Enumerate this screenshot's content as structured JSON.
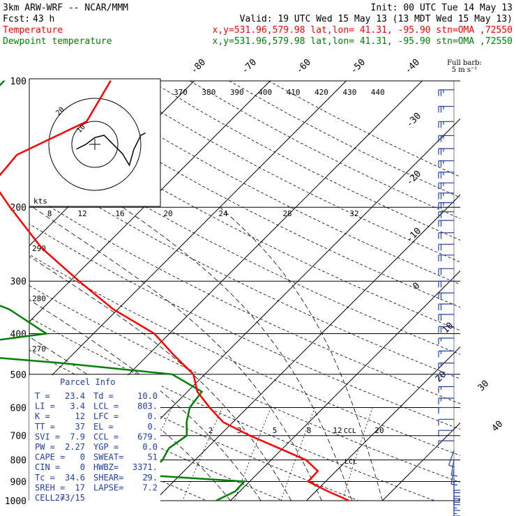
{
  "header": {
    "model": "3km ARW-WRF -- NCAR/MMM",
    "init": "Init: 00 UTC Tue 14 May 13",
    "fcst_label": "Fcst:",
    "fcst_value": "43 h",
    "valid": "Valid: 19 UTC Wed 15 May 13 (13 MDT Wed 15 May 13)"
  },
  "legend": {
    "temperature": {
      "label": "Temperature",
      "info": "x,y=531.96,579.98   lat,lon= 41.31, -95.90   stn=OMA ,72550",
      "color": "#ff0000"
    },
    "dewpoint": {
      "label": "Dewpoint temperature",
      "info": "x,y=531.96,579.98   lat,lon= 41.31, -95.90   stn=OMA ,72550",
      "color": "#008000"
    }
  },
  "barb_note": {
    "line1": "Full barb:",
    "line2": "5 m s⁻¹"
  },
  "hodograph": {
    "units": "kts",
    "speed_labels": [
      "8",
      "12",
      "16",
      "20",
      "24",
      "28",
      "32"
    ],
    "ring_labels": [
      "20",
      "10"
    ]
  },
  "parcel_info": {
    "title": "Parcel Info",
    "rows": [
      {
        "k1": "T   =",
        "v1": "23.4",
        "k2": "Td =",
        "v2": "10.0"
      },
      {
        "k1": "LI  =",
        "v1": "3.4",
        "k2": "LCL =",
        "v2": "803."
      },
      {
        "k1": "K   =",
        "v1": "12",
        "k2": "LFC =",
        "v2": "0."
      },
      {
        "k1": "TT  =",
        "v1": "37",
        "k2": "EL  =",
        "v2": "0."
      },
      {
        "k1": "SVI =",
        "v1": "7.9",
        "k2": "CCL =",
        "v2": "679."
      },
      {
        "k1": "PW  =",
        "v1": "2.27",
        "k2": "YGP =",
        "v2": "0.0"
      },
      {
        "k1": "CAPE =",
        "v1": "0",
        "k2": "SWEAT=",
        "v2": "51"
      },
      {
        "k1": "CIN  =",
        "v1": "0",
        "k2": "HWBZ=",
        "v2": "3371."
      },
      {
        "k1": "Tc   =",
        "v1": "34.6",
        "k2": "SHEAR=",
        "v2": "29."
      },
      {
        "k1": "SREH =",
        "v1": "17",
        "k2": "LAPSE=",
        "v2": "7.2"
      },
      {
        "k1": "CELL =",
        "v1": "273/15",
        "k2": "",
        "v2": ""
      }
    ]
  },
  "chart_data": {
    "type": "line",
    "subtype": "skew-T log-P sounding",
    "pressure_ticks": [
      "100",
      "200",
      "300",
      "400",
      "500",
      "600",
      "700",
      "800",
      "900",
      "1000"
    ],
    "isotherm_labels": [
      "-80",
      "-70",
      "-60",
      "-50",
      "-40",
      "-30",
      "-20",
      "-10",
      "0",
      "10",
      "20",
      "30",
      "40"
    ],
    "theta_labels": [
      "370",
      "380",
      "390",
      "400",
      "410",
      "420",
      "430",
      "440"
    ],
    "theta_side_labels": [
      "290",
      "280",
      "270"
    ],
    "mixing_ratio_labels": [
      "2",
      "3",
      "5",
      "8",
      "12",
      "20"
    ],
    "annotations": [
      "CCL",
      "LCL"
    ],
    "series": [
      {
        "name": "Temperature",
        "units": "degC",
        "points": [
          {
            "p": 1000,
            "t": 25.6
          },
          {
            "p": 950,
            "t": 21.6
          },
          {
            "p": 900,
            "t": 17.7
          },
          {
            "p": 850,
            "t": 17.6
          },
          {
            "p": 800,
            "t": 14.6
          },
          {
            "p": 750,
            "t": 9.5
          },
          {
            "p": 700,
            "t": 4.0
          },
          {
            "p": 650,
            "t": -1.3
          },
          {
            "p": 600,
            "t": -5.0
          },
          {
            "p": 550,
            "t": -8.7
          },
          {
            "p": 500,
            "t": -11.5
          },
          {
            "p": 450,
            "t": -16.6
          },
          {
            "p": 400,
            "t": -22.0
          },
          {
            "p": 350,
            "t": -30.6
          },
          {
            "p": 300,
            "t": -38.8
          },
          {
            "p": 250,
            "t": -48.1
          },
          {
            "p": 200,
            "t": -57.6
          },
          {
            "p": 175,
            "t": -63.0
          },
          {
            "p": 150,
            "t": -63.6
          },
          {
            "p": 125,
            "t": -58.8
          },
          {
            "p": 100,
            "t": -61.0
          }
        ]
      },
      {
        "name": "Dewpoint temperature",
        "units": "degC",
        "points": [
          {
            "p": 1000,
            "t": 8.1
          },
          {
            "p": 950,
            "t": 9.4
          },
          {
            "p": 900,
            "t": 9.3
          },
          {
            "p": 870,
            "t": -4.3
          },
          {
            "p": 800,
            "t": -4.3
          },
          {
            "p": 750,
            "t": -5.0
          },
          {
            "p": 700,
            "t": -4.3
          },
          {
            "p": 650,
            "t": -6.1
          },
          {
            "p": 600,
            "t": -7.6
          },
          {
            "p": 550,
            "t": -8.1
          },
          {
            "p": 500,
            "t": -14.3
          },
          {
            "p": 470,
            "t": -30.4
          },
          {
            "p": 440,
            "t": -51.2
          },
          {
            "p": 400,
            "t": -36.2
          },
          {
            "p": 350,
            "t": -44.3
          },
          {
            "p": 300,
            "t": -57.5
          },
          {
            "p": 250,
            "t": -68.7
          },
          {
            "p": 200,
            "t": -71.9
          },
          {
            "p": 150,
            "t": -74.6
          },
          {
            "p": 120,
            "t": -75.0
          },
          {
            "p": 100,
            "t": -75.0
          }
        ]
      }
    ],
    "wind_barbs": [
      {
        "p": 105,
        "dir": 270,
        "spd": 25
      },
      {
        "p": 115,
        "dir": 270,
        "spd": 25
      },
      {
        "p": 125,
        "dir": 270,
        "spd": 25
      },
      {
        "p": 135,
        "dir": 270,
        "spd": 25
      },
      {
        "p": 145,
        "dir": 270,
        "spd": 25
      },
      {
        "p": 155,
        "dir": 270,
        "spd": 25
      },
      {
        "p": 165,
        "dir": 270,
        "spd": 25
      },
      {
        "p": 175,
        "dir": 270,
        "spd": 25
      },
      {
        "p": 185,
        "dir": 270,
        "spd": 25
      },
      {
        "p": 195,
        "dir": 270,
        "spd": 25
      },
      {
        "p": 205,
        "dir": 270,
        "spd": 20
      },
      {
        "p": 215,
        "dir": 270,
        "spd": 20
      },
      {
        "p": 230,
        "dir": 270,
        "spd": 20
      },
      {
        "p": 245,
        "dir": 270,
        "spd": 20
      },
      {
        "p": 260,
        "dir": 270,
        "spd": 20
      },
      {
        "p": 280,
        "dir": 270,
        "spd": 20
      },
      {
        "p": 300,
        "dir": 270,
        "spd": 20
      },
      {
        "p": 320,
        "dir": 270,
        "spd": 20
      },
      {
        "p": 340,
        "dir": 270,
        "spd": 20
      },
      {
        "p": 360,
        "dir": 270,
        "spd": 20
      },
      {
        "p": 385,
        "dir": 270,
        "spd": 20
      },
      {
        "p": 410,
        "dir": 270,
        "spd": 15
      },
      {
        "p": 440,
        "dir": 270,
        "spd": 15
      },
      {
        "p": 470,
        "dir": 270,
        "spd": 15
      },
      {
        "p": 500,
        "dir": 270,
        "spd": 15
      },
      {
        "p": 535,
        "dir": 270,
        "spd": 15
      },
      {
        "p": 570,
        "dir": 270,
        "spd": 15
      },
      {
        "p": 600,
        "dir": 270,
        "spd": 10
      },
      {
        "p": 640,
        "dir": 270,
        "spd": 10
      },
      {
        "p": 680,
        "dir": 270,
        "spd": 10
      },
      {
        "p": 720,
        "dir": 270,
        "spd": 5
      },
      {
        "p": 760,
        "dir": 200,
        "spd": 10
      },
      {
        "p": 800,
        "dir": 190,
        "spd": 10
      },
      {
        "p": 840,
        "dir": 190,
        "spd": 15
      },
      {
        "p": 880,
        "dir": 180,
        "spd": 20
      },
      {
        "p": 910,
        "dir": 180,
        "spd": 20
      },
      {
        "p": 940,
        "dir": 180,
        "spd": 20
      },
      {
        "p": 970,
        "dir": 180,
        "spd": 15
      },
      {
        "p": 1000,
        "dir": 180,
        "spd": 15
      }
    ],
    "hodograph_points": [
      {
        "u": -8,
        "v": 4
      },
      {
        "u": -4,
        "v": 6
      },
      {
        "u": 0,
        "v": 9
      },
      {
        "u": 4,
        "v": 10
      },
      {
        "u": 8,
        "v": 6
      },
      {
        "u": 12,
        "v": 2
      },
      {
        "u": 15,
        "v": -3
      },
      {
        "u": 17,
        "v": 4
      },
      {
        "u": 20,
        "v": 10
      },
      {
        "u": 22,
        "v": 11
      }
    ]
  }
}
